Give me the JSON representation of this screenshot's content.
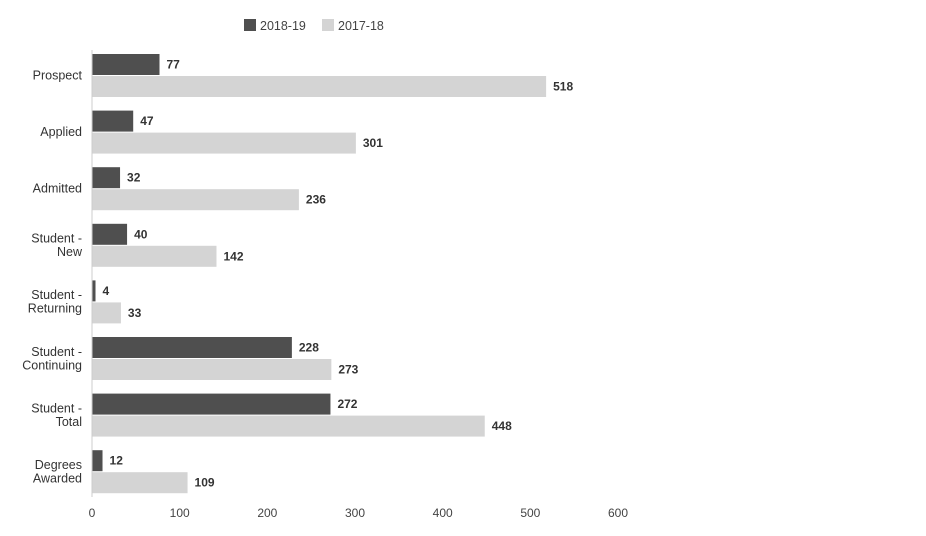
{
  "chart_data": {
    "type": "bar",
    "orientation": "horizontal",
    "categories": [
      [
        "Prospect"
      ],
      [
        "Applied"
      ],
      [
        "Admitted"
      ],
      [
        "Student -",
        "New"
      ],
      [
        "Student -",
        "Returning"
      ],
      [
        "Student -",
        "Continuing"
      ],
      [
        "Student -",
        "Total"
      ],
      [
        "Degrees",
        "Awarded"
      ]
    ],
    "series": [
      {
        "name": "2018-19",
        "color": "#4f4f4f",
        "values": [
          77,
          47,
          32,
          40,
          4,
          228,
          272,
          12
        ]
      },
      {
        "name": "2017-18",
        "color": "#d4d4d4",
        "values": [
          518,
          301,
          236,
          142,
          33,
          273,
          448,
          109
        ]
      }
    ],
    "title": "",
    "xlabel": "",
    "ylabel": "",
    "xlim": [
      0,
      600
    ],
    "xticks": [
      "0",
      "100",
      "200",
      "300",
      "400",
      "500",
      "600"
    ],
    "grid": false,
    "legend_position": "top",
    "data_labels": true
  }
}
